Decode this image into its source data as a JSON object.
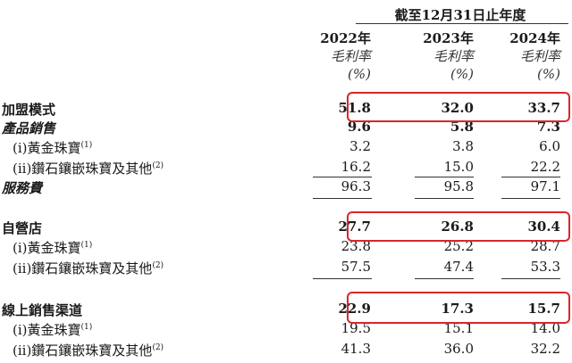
{
  "header": {
    "period": "截至12月31日止年度",
    "years": [
      "2022年",
      "2023年",
      "2024年"
    ],
    "metric": "毛利率",
    "unit": "(%)"
  },
  "rows": [
    {
      "label": "加盟模式",
      "values": [
        "51.8",
        "32.0",
        "33.7"
      ],
      "style": "bold"
    },
    {
      "label": "產品銷售",
      "values": [
        "9.6",
        "5.8",
        "7.3"
      ],
      "style": "italic"
    },
    {
      "label": "(i)黃金珠寶",
      "note": "(1)",
      "values": [
        "3.2",
        "3.8",
        "6.0"
      ],
      "style": "sub"
    },
    {
      "label": "(ii)鑽石鑲嵌珠寶及其他",
      "note": "(2)",
      "values": [
        "16.2",
        "15.0",
        "22.2"
      ],
      "style": "sub"
    },
    {
      "label": "服務費",
      "values": [
        "96.3",
        "95.8",
        "97.1"
      ],
      "style": "italic"
    },
    {
      "label": "自營店",
      "values": [
        "27.7",
        "26.8",
        "30.4"
      ],
      "style": "bold"
    },
    {
      "label": "(i)黃金珠寶",
      "note": "(1)",
      "values": [
        "23.8",
        "25.2",
        "28.7"
      ],
      "style": "sub"
    },
    {
      "label": "(ii)鑽石鑲嵌珠寶及其他",
      "note": "(2)",
      "values": [
        "57.5",
        "47.4",
        "53.3"
      ],
      "style": "sub"
    },
    {
      "label": "線上銷售渠道",
      "values": [
        "22.9",
        "17.3",
        "15.7"
      ],
      "style": "bold"
    },
    {
      "label": "(i)黃金珠寶",
      "note": "(1)",
      "values": [
        "19.5",
        "15.1",
        "14.0"
      ],
      "style": "sub"
    },
    {
      "label": "(ii)鑽石鑲嵌珠寶及其他",
      "note": "(2)",
      "values": [
        "41.3",
        "36.0",
        "32.2"
      ],
      "style": "sub"
    }
  ],
  "highlight_color": "#d9262b"
}
